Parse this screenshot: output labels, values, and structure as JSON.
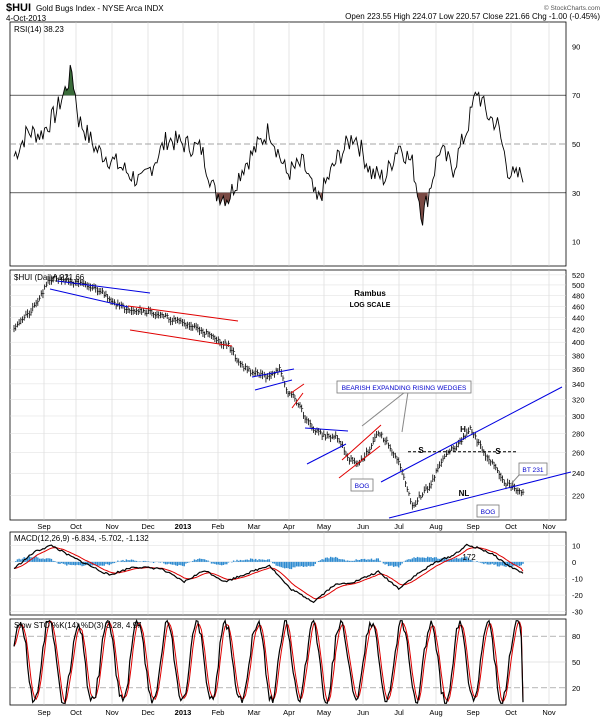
{
  "header": {
    "symbol": "$HUI",
    "name": "Gold Bugs Index - NYSE Arca INDX",
    "date": "4-Oct-2013",
    "ohlc": "Open 223.55  High 224.07  Low 220.57  Close 221.66  Chg -1.00 (-0.45%)",
    "credit": "© StockCharts.com"
  },
  "colors": {
    "price": "#000000",
    "blue_line": "#0000e0",
    "red_line": "#e00000",
    "rsi_overbought": "#3a6b3a",
    "rsi_oversold": "#7a4a44",
    "macd_hist": "#2e8bd0"
  },
  "months": [
    "Sep",
    "Oct",
    "Nov",
    "Dec",
    "2013",
    "Feb",
    "Mar",
    "Apr",
    "May",
    "Jun",
    "Jul",
    "Aug",
    "Sep",
    "Oct",
    "Nov"
  ],
  "chart_data": [
    {
      "type": "line",
      "title": "RSI(14) 38.23",
      "ylim": [
        0,
        100
      ],
      "y_ticks": [
        10,
        30,
        50,
        70,
        90
      ],
      "levels": [
        30,
        50,
        70
      ],
      "shaded": "above 70 green, below 30 brown",
      "grid": true
    },
    {
      "type": "line",
      "title": "$HUI (Daily) 221.66",
      "log_scale": true,
      "ylim": [
        200,
        530
      ],
      "y_ticks": [
        220,
        240,
        260,
        280,
        300,
        320,
        340,
        360,
        380,
        400,
        420,
        440,
        460,
        480,
        500,
        520
      ],
      "grid": true,
      "annotations": [
        "Rambus",
        "LOG SCALE",
        "BEARISH EXPANDING RISING WEDGES",
        "S",
        "H",
        "S",
        "NL",
        "BOG",
        "BOG",
        "BT 231"
      ],
      "reference_level": 261
    },
    {
      "type": "line",
      "title": "MACD(12,26,9) -6.834, -5.702, -1.132",
      "series": [
        {
          "name": "MACD(12,26,9)",
          "last": -6.834
        },
        {
          "name": "Signal",
          "last": -5.702
        },
        {
          "name": "Histogram",
          "last": -1.132
        }
      ],
      "ylim": [
        -32,
        18
      ],
      "y_ticks": [
        -30,
        -20,
        -10,
        0,
        10
      ],
      "annotation": "172",
      "grid": true
    },
    {
      "type": "line",
      "title": "Slow STO %K(14) %D(3) 3.28, 4.97",
      "series": [
        {
          "name": "%K(14)",
          "last": 3.28
        },
        {
          "name": "%D(3)",
          "last": 4.97
        }
      ],
      "ylim": [
        0,
        100
      ],
      "y_ticks": [
        20,
        50,
        80
      ],
      "levels": [
        20,
        80
      ],
      "grid": true
    }
  ]
}
